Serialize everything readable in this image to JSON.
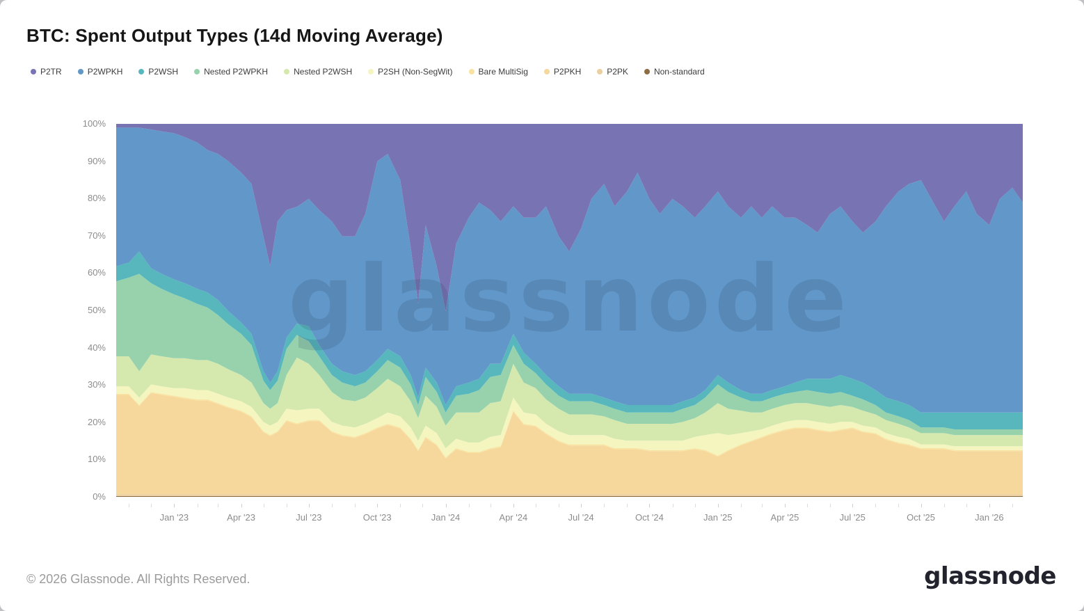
{
  "title": "BTC: Spent Output Types (14d Moving Average)",
  "watermark": "glassnode",
  "footer": {
    "copyright": "© 2026 Glassnode. All Rights Reserved.",
    "logo": "glassnode"
  },
  "axes": {
    "y_ticks": [
      "100%",
      "90%",
      "80%",
      "70%",
      "60%",
      "50%",
      "40%",
      "30%",
      "20%",
      "10%",
      "0%"
    ]
  },
  "chart_data": {
    "type": "area",
    "title": "BTC: Spent Output Types (14d Moving Average)",
    "stacked_percent": true,
    "ylim": [
      0,
      100
    ],
    "grid": false,
    "legend_position": "top",
    "xticks": [
      {
        "label": "Jan '23",
        "date": "2023-01-01"
      },
      {
        "label": "Apr '23",
        "date": "2023-04-01"
      },
      {
        "label": "Jul '23",
        "date": "2023-07-01"
      },
      {
        "label": "Oct '23",
        "date": "2023-10-01"
      },
      {
        "label": "Jan '24",
        "date": "2024-01-01"
      },
      {
        "label": "Apr '24",
        "date": "2024-04-01"
      },
      {
        "label": "Jul '24",
        "date": "2024-07-01"
      },
      {
        "label": "Oct '24",
        "date": "2024-10-01"
      },
      {
        "label": "Jan '25",
        "date": "2025-01-01"
      },
      {
        "label": "Apr '25",
        "date": "2025-04-01"
      },
      {
        "label": "Jul '25",
        "date": "2025-07-01"
      },
      {
        "label": "Oct '25",
        "date": "2025-10-01"
      },
      {
        "label": "Jan '26",
        "date": "2026-01-01"
      }
    ],
    "x": [
      "2022-10-15",
      "2022-11-01",
      "2022-11-15",
      "2022-12-01",
      "2022-12-15",
      "2023-01-01",
      "2023-01-15",
      "2023-02-01",
      "2023-02-15",
      "2023-03-01",
      "2023-03-15",
      "2023-04-01",
      "2023-04-15",
      "2023-05-01",
      "2023-05-10",
      "2023-05-20",
      "2023-06-01",
      "2023-06-15",
      "2023-07-01",
      "2023-07-15",
      "2023-08-01",
      "2023-08-15",
      "2023-09-01",
      "2023-09-15",
      "2023-10-01",
      "2023-10-15",
      "2023-11-01",
      "2023-11-15",
      "2023-11-25",
      "2023-12-05",
      "2023-12-20",
      "2024-01-01",
      "2024-01-15",
      "2024-02-01",
      "2024-02-15",
      "2024-03-01",
      "2024-03-15",
      "2024-04-01",
      "2024-04-15",
      "2024-05-01",
      "2024-05-15",
      "2024-06-01",
      "2024-06-15",
      "2024-07-01",
      "2024-07-15",
      "2024-08-01",
      "2024-08-15",
      "2024-09-01",
      "2024-09-15",
      "2024-10-01",
      "2024-10-15",
      "2024-11-01",
      "2024-11-15",
      "2024-12-01",
      "2024-12-15",
      "2025-01-01",
      "2025-01-15",
      "2025-02-01",
      "2025-02-15",
      "2025-03-01",
      "2025-03-15",
      "2025-04-01",
      "2025-04-15",
      "2025-05-01",
      "2025-05-15",
      "2025-06-01",
      "2025-06-15",
      "2025-07-01",
      "2025-07-15",
      "2025-08-01",
      "2025-08-15",
      "2025-09-01",
      "2025-09-15",
      "2025-10-01",
      "2025-10-15",
      "2025-11-01",
      "2025-11-15",
      "2025-12-01",
      "2025-12-15",
      "2026-01-01",
      "2026-01-15",
      "2026-02-01",
      "2026-02-15"
    ],
    "series": [
      {
        "name": "P2TR",
        "color": "#7873b3",
        "values": [
          1,
          1,
          1,
          1.5,
          2,
          2.5,
          3.5,
          5,
          7,
          8,
          10,
          13,
          16,
          30,
          38,
          26,
          23,
          22,
          20,
          23,
          26,
          30,
          30,
          24,
          10,
          8,
          15,
          33,
          48,
          27,
          38,
          50,
          32,
          25,
          21,
          23,
          26,
          22,
          25,
          25,
          22,
          30,
          34,
          28,
          20,
          16,
          22,
          18,
          13,
          20,
          24,
          20,
          22,
          25,
          22,
          18,
          22,
          25,
          22,
          25,
          22,
          25,
          25,
          27,
          29,
          24,
          22,
          26,
          29,
          26,
          22,
          18,
          16,
          15,
          20,
          26,
          22,
          18,
          24,
          27,
          20,
          17,
          21
        ]
      },
      {
        "name": "P2WPKH",
        "color": "#6297c9",
        "values": [
          37,
          36,
          33,
          37,
          38,
          39,
          39,
          39,
          38,
          39,
          40,
          40,
          40,
          36,
          31,
          40,
          34,
          31,
          34,
          36,
          38,
          36,
          37,
          42,
          53,
          52,
          47,
          34,
          25,
          38,
          31,
          25,
          38,
          44,
          47,
          41,
          38,
          34,
          36,
          39,
          45,
          40,
          38,
          44,
          52,
          57,
          52,
          57,
          62,
          55,
          51,
          55,
          52,
          48,
          49,
          49,
          47,
          46,
          50,
          47,
          49,
          45,
          44,
          41,
          39,
          44,
          45,
          42,
          40,
          45,
          51,
          56,
          59,
          62,
          57,
          51,
          55,
          59,
          53,
          50,
          57,
          60,
          56
        ]
      },
      {
        "name": "P2WSH",
        "color": "#57b7bd",
        "values": [
          4,
          4,
          6,
          4,
          4,
          4,
          4,
          4,
          4,
          4,
          3.5,
          3,
          3,
          2.5,
          2,
          2.5,
          3,
          3,
          4,
          3,
          3,
          3,
          3,
          3,
          3,
          3,
          3,
          2.5,
          2,
          2.5,
          2.5,
          2,
          2.5,
          3,
          3,
          3.5,
          3,
          3,
          3,
          2.5,
          2.5,
          2.5,
          2,
          2,
          2,
          2,
          2,
          2,
          2,
          2,
          2,
          2,
          2,
          2,
          2,
          2.5,
          2.5,
          2,
          2,
          2,
          2,
          2,
          2.5,
          3,
          3.5,
          4,
          4.5,
          4.5,
          4.5,
          4,
          4,
          4,
          4,
          4,
          4,
          4,
          4.5,
          4.5,
          4.5,
          4.5,
          4.5,
          4.5,
          4.5
        ]
      },
      {
        "name": "Nested P2WPKH",
        "color": "#97d2ad",
        "values": [
          20,
          21,
          26,
          19,
          18,
          17,
          16,
          15,
          14,
          13,
          12,
          11,
          10,
          6,
          5,
          6,
          7,
          6,
          6,
          5,
          4.5,
          4.5,
          4,
          4,
          4.5,
          5,
          5,
          4.5,
          3.5,
          5,
          4,
          3.5,
          4.5,
          5,
          6,
          7,
          7,
          5,
          5,
          4,
          4,
          3.5,
          3.5,
          3.5,
          3.5,
          3,
          3,
          3,
          3,
          3,
          3,
          3,
          3.5,
          3.5,
          4,
          5,
          4.5,
          3.5,
          3,
          3,
          3,
          3,
          3,
          3.5,
          3.5,
          3.5,
          3.5,
          3,
          3,
          2.5,
          2,
          2,
          2,
          1.5,
          1.5,
          1.5,
          1.5,
          1.5,
          1.5,
          1.5,
          1.5,
          1.5,
          1.5
        ]
      },
      {
        "name": "Nested P2WSH",
        "color": "#d5e9ae",
        "values": [
          8,
          8,
          7,
          8,
          8,
          8,
          8,
          8,
          8,
          8,
          7.5,
          7,
          6.5,
          5,
          4.5,
          5,
          9,
          14,
          12,
          9,
          8,
          7,
          7,
          7,
          8,
          9,
          8,
          7,
          6,
          8,
          7,
          6,
          7,
          8,
          8,
          9,
          9,
          9,
          8,
          7,
          6.5,
          6,
          5.5,
          5.5,
          5.5,
          5,
          5,
          4.5,
          4.5,
          4.5,
          4.5,
          4.5,
          5,
          5,
          6,
          8,
          7,
          6,
          5,
          4.5,
          4.5,
          4.5,
          4.5,
          4.5,
          4.5,
          4.5,
          4.5,
          4,
          4,
          3.5,
          3.5,
          3.5,
          3,
          3,
          3,
          3,
          3,
          3,
          3,
          3,
          3,
          3,
          3
        ]
      },
      {
        "name": "P2SH (Non-SegWit)",
        "color": "#f4f5bf",
        "values": [
          2,
          2,
          2,
          2,
          2,
          2,
          2.5,
          2.5,
          2.5,
          2.5,
          2.5,
          2.5,
          2.5,
          2.5,
          2.5,
          2.5,
          3,
          3.5,
          3,
          3,
          2.5,
          2.5,
          2.5,
          2.5,
          2.5,
          3,
          3,
          3,
          2.5,
          3,
          3,
          2.5,
          2.5,
          2.5,
          2.5,
          3,
          3,
          3.5,
          3,
          3,
          2.5,
          2.5,
          2.5,
          2.5,
          2.5,
          2.5,
          2.5,
          2,
          2,
          2.5,
          2.5,
          2.5,
          2.5,
          3,
          4,
          6,
          4,
          3,
          2.5,
          2,
          2,
          2,
          2,
          2,
          2,
          2,
          2,
          1.5,
          1.5,
          1.5,
          1.5,
          1.5,
          1.5,
          1,
          1,
          1,
          1,
          1,
          1,
          1,
          1,
          1,
          1
        ]
      },
      {
        "name": "Bare MultiSig",
        "color": "#f8e3a1",
        "value_constant": 0.3
      },
      {
        "name": "P2PKH",
        "color": "#f6d79c",
        "values": [
          26.5,
          26.5,
          23.5,
          27,
          26.5,
          26,
          25.5,
          25,
          25,
          24,
          23,
          22,
          20.5,
          16.5,
          15.5,
          16.5,
          19.5,
          18.5,
          19.5,
          19.5,
          16.5,
          15.5,
          15,
          16,
          17.5,
          18.5,
          17.5,
          14.5,
          11.5,
          15,
          13,
          9.5,
          12,
          11,
          11,
          12,
          12.5,
          22,
          18.5,
          18,
          16,
          14,
          13,
          13,
          13,
          13,
          12,
          12,
          12,
          11.5,
          11.5,
          11.5,
          11.5,
          12,
          11.5,
          10,
          11.5,
          13,
          14,
          15,
          16,
          17,
          17.5,
          17.5,
          17,
          16.5,
          17,
          17.5,
          16.5,
          16,
          14.5,
          13.5,
          13,
          12,
          12,
          12,
          11.5,
          11.5,
          11.5,
          11.5,
          11.5,
          11.5,
          11.5
        ]
      },
      {
        "name": "P2PK",
        "color": "#eccf9f",
        "value_constant": 0.5
      },
      {
        "name": "Non-standard",
        "color": "#8d6b43",
        "value_constant": 0.2
      }
    ]
  }
}
